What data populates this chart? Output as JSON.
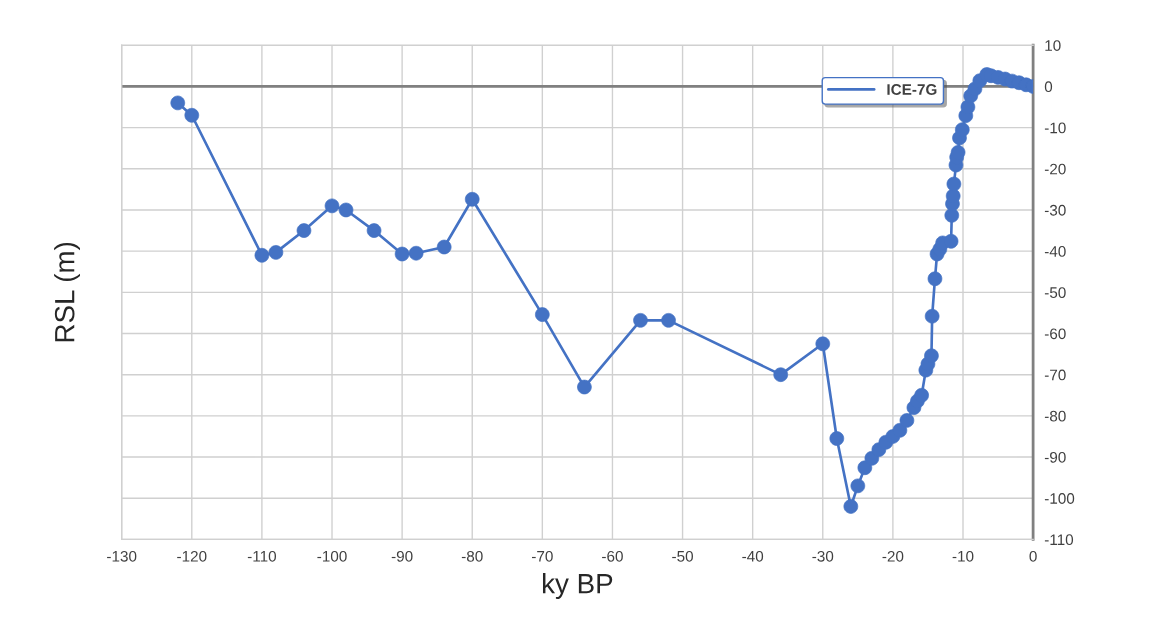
{
  "chart_data": {
    "type": "line",
    "xlabel": "ky BP",
    "ylabel": "RSL (m)",
    "xlim": [
      -130,
      0
    ],
    "ylim": [
      -110,
      10
    ],
    "xticks": [
      -130,
      -120,
      -110,
      -100,
      -90,
      -80,
      -70,
      -60,
      -50,
      -40,
      -30,
      -20,
      -10,
      0
    ],
    "yticks": [
      -110,
      -100,
      -90,
      -80,
      -70,
      -60,
      -50,
      -40,
      -30,
      -20,
      -10,
      0,
      10
    ],
    "grid": true,
    "legend": "top right",
    "marker": "circle",
    "line_style": "solid",
    "ref_lines": [
      {
        "axis": "y",
        "value": 0,
        "color": "#808080"
      }
    ],
    "series": [
      {
        "name": "ICE-7G",
        "color": "#4472c4",
        "x": [
          -122,
          -120,
          -110,
          -108,
          -104,
          -100,
          -98,
          -94,
          -90,
          -88,
          -84,
          -80,
          -70,
          -64,
          -56,
          -52,
          -36,
          -30,
          -28,
          -26,
          -25,
          -24,
          -23,
          -22,
          -21,
          -20,
          -19,
          -18,
          -17,
          -16.5,
          -15.9,
          -15.3,
          -15.0,
          -14.5,
          -14.4,
          -14.0,
          -13.7,
          -13.3,
          -12.9,
          -11.7,
          -11.6,
          -11.5,
          -11.4,
          -11.3,
          -11.0,
          -10.9,
          -10.7,
          -10.5,
          -10.1,
          -9.6,
          -9.3,
          -8.9,
          -8.3,
          -7.6,
          -6.6,
          -6,
          -5,
          -4,
          -3,
          -2,
          -1,
          0
        ],
        "values": [
          -4,
          -7,
          -41,
          -40.3,
          -35,
          -29,
          -30,
          -35,
          -40.7,
          -40.5,
          -39,
          -27.4,
          -55.4,
          -73,
          -56.8,
          -56.8,
          -70,
          -62.5,
          -85.5,
          -102,
          -97,
          -92.6,
          -90.3,
          -88.2,
          -86.4,
          -85,
          -83.5,
          -81.1,
          -78,
          -76.4,
          -75,
          -68.9,
          -67.4,
          -65.4,
          -55.8,
          -46.7,
          -40.7,
          -39.5,
          -38,
          -37.6,
          -31.3,
          -28.5,
          -26.6,
          -23.7,
          -19.1,
          -17.2,
          -16,
          -12.5,
          -10.5,
          -7.1,
          -5,
          -2.3,
          -0.6,
          1.4,
          2.9,
          2.6,
          2.2,
          1.8,
          1.3,
          0.9,
          0.4,
          0
        ]
      }
    ]
  }
}
